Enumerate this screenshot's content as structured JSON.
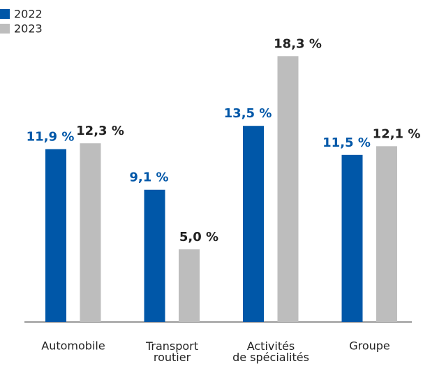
{
  "chart_data": {
    "type": "bar",
    "categories": [
      "Automobile",
      "Transport\nroutier",
      "Activités\nde spécialités",
      "Groupe"
    ],
    "series": [
      {
        "name": "2022",
        "color": "#0057a8",
        "values": [
          11.9,
          9.1,
          13.5,
          11.5
        ],
        "value_labels": [
          "11,9 %",
          "9,1 %",
          "13,5 %",
          "11,5 %"
        ]
      },
      {
        "name": "2023",
        "color": "#bdbdbd",
        "values": [
          12.3,
          5.0,
          18.3,
          12.1
        ],
        "value_labels": [
          "12,3 %",
          "5,0 %",
          "18,3 %",
          "12,1 %"
        ]
      }
    ],
    "ylim": [
      0,
      20
    ]
  }
}
